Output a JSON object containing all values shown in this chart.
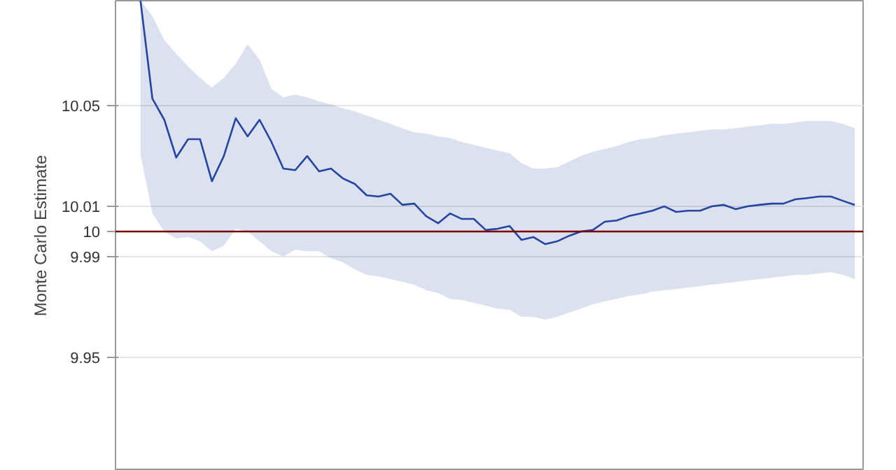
{
  "chart_data": {
    "type": "line",
    "ylabel": "Monte Carlo Estimate",
    "categories": [
      null,
      null,
      null,
      null,
      null,
      null,
      null,
      null,
      null,
      null,
      null,
      null,
      null,
      null,
      null,
      null,
      null,
      null,
      null,
      null,
      null,
      null,
      null,
      null,
      null,
      null,
      null,
      null,
      null,
      null,
      null,
      null,
      null,
      null,
      null,
      null,
      null,
      null,
      null,
      null,
      null,
      null,
      null,
      null,
      null,
      null,
      null,
      null,
      null,
      null,
      null,
      null,
      null,
      null,
      null,
      null,
      null,
      null,
      null,
      null,
      null
    ],
    "series": [
      {
        "color": "#2445a0",
        "values": [
          10.0917,
          10.0528,
          10.0444,
          10.0294,
          10.0367,
          10.0367,
          10.02,
          10.03,
          10.045,
          10.0378,
          10.0444,
          10.0356,
          10.025,
          10.0244,
          10.03,
          10.0239,
          10.025,
          10.0211,
          10.0189,
          10.0144,
          10.0139,
          10.015,
          10.0106,
          10.0111,
          10.0061,
          10.0033,
          10.0072,
          10.005,
          10.005,
          10.0006,
          10.0011,
          10.0022,
          9.9967,
          9.9978,
          9.995,
          9.9961,
          9.9983,
          10.0,
          10.0006,
          10.0039,
          10.0044,
          10.0061,
          10.0072,
          10.0083,
          10.01,
          10.0078,
          10.0083,
          10.0083,
          10.01,
          10.0106,
          10.0089,
          10.01,
          10.0106,
          10.0111,
          10.0111,
          10.0128,
          10.0133,
          10.0139,
          10.0139,
          10.0122,
          10.0106
        ],
        "upper": [
          10.0917,
          10.0856,
          10.0761,
          10.0706,
          10.0656,
          10.0611,
          10.0572,
          10.0611,
          10.0667,
          10.0744,
          10.0683,
          10.0567,
          10.0533,
          10.0544,
          10.0533,
          10.0517,
          10.0506,
          10.0489,
          10.0478,
          10.0461,
          10.0444,
          10.0428,
          10.0411,
          10.0394,
          10.0389,
          10.0378,
          10.0372,
          10.0356,
          10.0344,
          10.0333,
          10.0322,
          10.0311,
          10.0272,
          10.025,
          10.025,
          10.0256,
          10.0278,
          10.03,
          10.0317,
          10.0328,
          10.0339,
          10.0356,
          10.0367,
          10.0372,
          10.0383,
          10.0389,
          10.0394,
          10.04,
          10.0406,
          10.0406,
          10.0411,
          10.0417,
          10.0422,
          10.0428,
          10.0428,
          10.0433,
          10.0439,
          10.0439,
          10.0439,
          10.0428,
          10.0411
        ],
        "lower": [
          10.0306,
          10.0072,
          10.0,
          9.9972,
          9.9978,
          9.9961,
          9.9922,
          9.9944,
          10.0011,
          10.0,
          9.9961,
          9.9922,
          9.99,
          9.9928,
          9.9922,
          9.9922,
          9.9894,
          9.9878,
          9.985,
          9.9828,
          9.9822,
          9.9811,
          9.98,
          9.9789,
          9.9767,
          9.9756,
          9.9733,
          9.9728,
          9.9717,
          9.9706,
          9.9694,
          9.9689,
          9.9661,
          9.9661,
          9.965,
          9.9661,
          9.9678,
          9.9694,
          9.9711,
          9.9722,
          9.9733,
          9.9744,
          9.975,
          9.9761,
          9.9767,
          9.9772,
          9.9778,
          9.9783,
          9.9789,
          9.9794,
          9.98,
          9.9806,
          9.9811,
          9.9817,
          9.9822,
          9.9828,
          9.9828,
          9.9833,
          9.9839,
          9.9828,
          9.9811
        ]
      }
    ],
    "ylim": [
      9.905,
      10.0917
    ],
    "yticks": [
      9.95,
      9.99,
      10,
      10.01,
      10.05
    ],
    "grid": "y",
    "ref_lines": [
      {
        "axis": "y",
        "value": 10,
        "color": "#7a0000"
      }
    ]
  }
}
